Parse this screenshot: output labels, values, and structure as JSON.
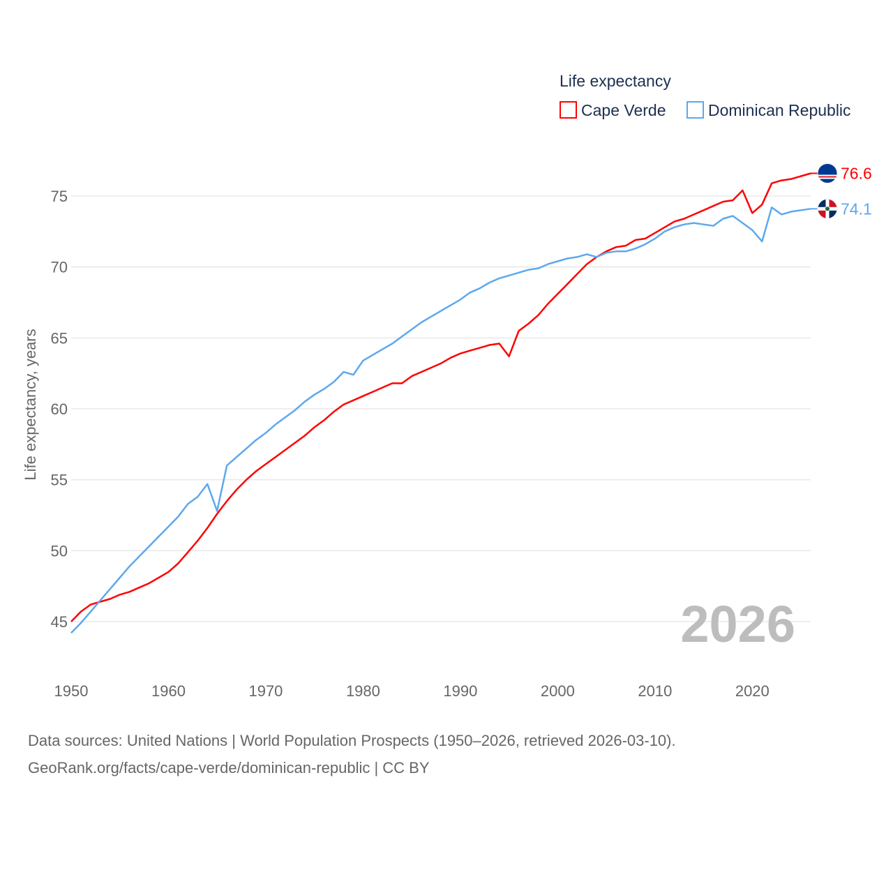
{
  "chart_data": {
    "type": "line",
    "title": "Life expectancy",
    "ylabel": "Life expectancy, years",
    "xlabel": "",
    "xlim": [
      1950,
      2026
    ],
    "ylim": [
      42.5,
      77.5
    ],
    "yticks": [
      45,
      50,
      55,
      60,
      65,
      70,
      75
    ],
    "xticks": [
      1950,
      1960,
      1970,
      1980,
      1990,
      2000,
      2010,
      2020
    ],
    "grid": true,
    "legend_position": "top-right",
    "current_year_label": "2026",
    "x_start": 1950,
    "series": [
      {
        "name": "Cape Verde",
        "color": "#ff0000",
        "end_label": "76.6",
        "flag": "cape-verde",
        "values": [
          45.0,
          45.7,
          46.2,
          46.4,
          46.6,
          46.9,
          47.1,
          47.4,
          47.7,
          48.1,
          48.5,
          49.1,
          49.9,
          50.7,
          51.6,
          52.6,
          53.5,
          54.3,
          55.0,
          55.6,
          56.1,
          56.6,
          57.1,
          57.6,
          58.1,
          58.7,
          59.2,
          59.8,
          60.3,
          60.6,
          60.9,
          61.2,
          61.5,
          61.8,
          61.8,
          62.3,
          62.6,
          62.9,
          63.2,
          63.6,
          63.9,
          64.1,
          64.3,
          64.5,
          64.6,
          63.7,
          65.5,
          66.0,
          66.6,
          67.4,
          68.1,
          68.8,
          69.5,
          70.2,
          70.7,
          71.1,
          71.4,
          71.5,
          71.9,
          72.0,
          72.4,
          72.8,
          73.2,
          73.4,
          73.7,
          74.0,
          74.3,
          74.6,
          74.7,
          75.4,
          73.8,
          74.4,
          75.9,
          76.1,
          76.2,
          76.4,
          76.6
        ]
      },
      {
        "name": "Dominican Republic",
        "color": "#5da8ee",
        "end_label": "74.1",
        "flag": "dominican-republic",
        "values": [
          44.2,
          44.9,
          45.7,
          46.5,
          47.3,
          48.1,
          48.9,
          49.6,
          50.3,
          51.0,
          51.7,
          52.4,
          53.3,
          53.8,
          54.7,
          52.8,
          56.0,
          56.6,
          57.2,
          57.8,
          58.3,
          58.9,
          59.4,
          59.9,
          60.5,
          61.0,
          61.4,
          61.9,
          62.6,
          62.4,
          63.4,
          63.8,
          64.2,
          64.6,
          65.1,
          65.6,
          66.1,
          66.5,
          66.9,
          67.3,
          67.7,
          68.2,
          68.5,
          68.9,
          69.2,
          69.4,
          69.6,
          69.8,
          69.9,
          70.2,
          70.4,
          70.6,
          70.7,
          70.9,
          70.7,
          71.0,
          71.1,
          71.1,
          71.3,
          71.6,
          72.0,
          72.5,
          72.8,
          73.0,
          73.1,
          73.0,
          72.9,
          73.4,
          73.6,
          73.1,
          72.6,
          71.8,
          74.2,
          73.7,
          73.9,
          74.0,
          74.1
        ]
      }
    ]
  },
  "sources": {
    "line1": "Data sources: United Nations | World Population Prospects (1950–2026, retrieved 2026-03-10).",
    "line2": "GeoRank.org/facts/cape-verde/dominican-republic | CC BY"
  }
}
